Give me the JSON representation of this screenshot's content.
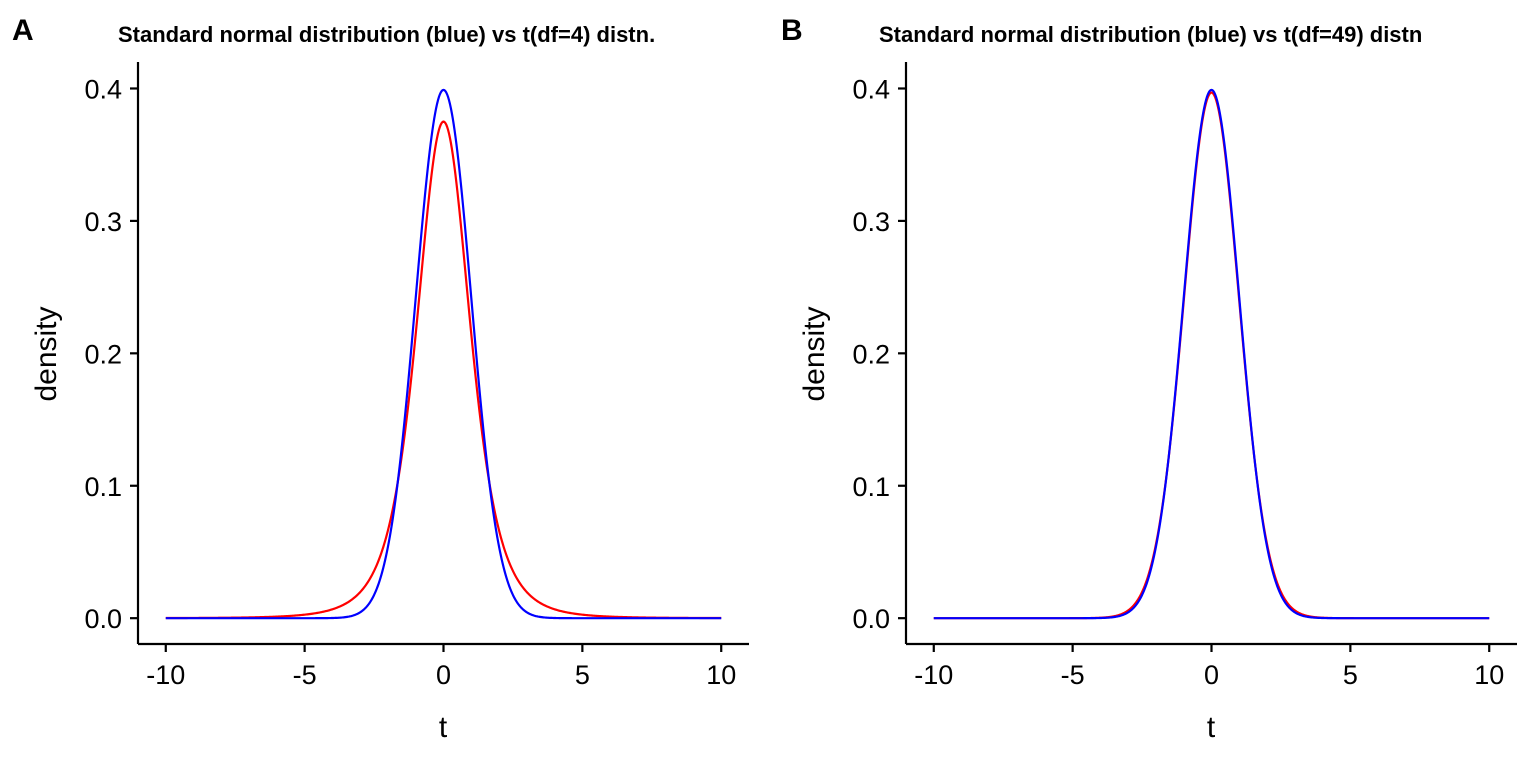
{
  "chart_data": [
    {
      "type": "line",
      "panel_tag": "A",
      "title": "Standard normal distribution (blue) vs t(df=4) distn.",
      "xlabel": "t",
      "ylabel": "density",
      "xlim": [
        -11,
        11
      ],
      "ylim": [
        -0.0195,
        0.42
      ],
      "xticks": [
        -10,
        -5,
        0,
        5,
        10
      ],
      "xtick_labels": [
        "-10",
        "-5",
        "0",
        "5",
        "10"
      ],
      "yticks": [
        0.0,
        0.1,
        0.2,
        0.3,
        0.4
      ],
      "ytick_labels": [
        "0.0",
        "0.1",
        "0.2",
        "0.3",
        "0.4"
      ],
      "grid": false,
      "x_range": [
        -10,
        10
      ],
      "series": [
        {
          "distribution": "t",
          "df": 4,
          "color": "#ff0000",
          "x": [
            -10,
            -5,
            -4,
            -3,
            -2,
            -1.5,
            -1,
            -0.5,
            0,
            0.5,
            1,
            1.5,
            2,
            3,
            4,
            5,
            10
          ],
          "values": [
            0.0005,
            0.0051,
            0.0098,
            0.0216,
            0.0663,
            0.1176,
            0.2147,
            0.32,
            0.375,
            0.32,
            0.2147,
            0.1176,
            0.0663,
            0.0216,
            0.0098,
            0.0051,
            0.0005
          ]
        },
        {
          "distribution": "normal",
          "color": "#0000ff",
          "x": [
            -10,
            -5,
            -4,
            -3,
            -2,
            -1.5,
            -1,
            -0.5,
            0,
            0.5,
            1,
            1.5,
            2,
            3,
            4,
            5,
            10
          ],
          "values": [
            0.0,
            0.0,
            0.0001,
            0.0044,
            0.054,
            0.1295,
            0.242,
            0.3521,
            0.3989,
            0.3521,
            0.242,
            0.1295,
            0.054,
            0.0044,
            0.0001,
            0.0,
            0.0
          ]
        }
      ]
    },
    {
      "type": "line",
      "panel_tag": "B",
      "title": "Standard normal distribution (blue) vs t(df=49) distn",
      "xlabel": "t",
      "ylabel": "density",
      "xlim": [
        -11,
        11
      ],
      "ylim": [
        -0.0195,
        0.42
      ],
      "xticks": [
        -10,
        -5,
        0,
        5,
        10
      ],
      "xtick_labels": [
        "-10",
        "-5",
        "0",
        "5",
        "10"
      ],
      "yticks": [
        0.0,
        0.1,
        0.2,
        0.3,
        0.4
      ],
      "ytick_labels": [
        "0.0",
        "0.1",
        "0.2",
        "0.3",
        "0.4"
      ],
      "grid": false,
      "x_range": [
        -10,
        10
      ],
      "series": [
        {
          "distribution": "t",
          "df": 49,
          "color": "#ff0000",
          "x": [
            -10,
            -5,
            -4,
            -3,
            -2,
            -1.5,
            -1,
            -0.5,
            0,
            0.5,
            1,
            1.5,
            2,
            3,
            4,
            5,
            10
          ],
          "values": [
            0.0,
            0.0,
            0.0002,
            0.0052,
            0.0555,
            0.1297,
            0.2407,
            0.3501,
            0.3969,
            0.3501,
            0.2407,
            0.1297,
            0.0555,
            0.0052,
            0.0002,
            0.0,
            0.0
          ]
        },
        {
          "distribution": "normal",
          "color": "#0000ff",
          "x": [
            -10,
            -5,
            -4,
            -3,
            -2,
            -1.5,
            -1,
            -0.5,
            0,
            0.5,
            1,
            1.5,
            2,
            3,
            4,
            5,
            10
          ],
          "values": [
            0.0,
            0.0,
            0.0001,
            0.0044,
            0.054,
            0.1295,
            0.242,
            0.3521,
            0.3989,
            0.3521,
            0.242,
            0.1295,
            0.054,
            0.0044,
            0.0001,
            0.0,
            0.0
          ]
        }
      ]
    }
  ]
}
